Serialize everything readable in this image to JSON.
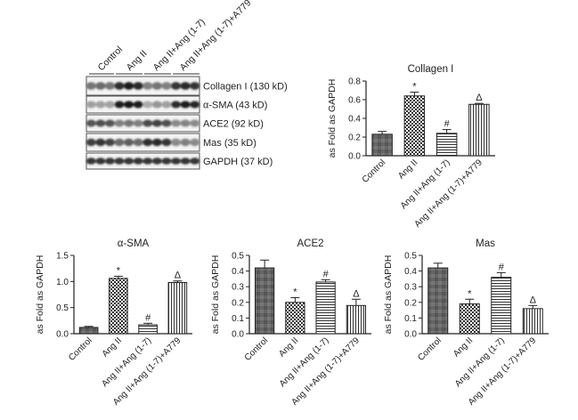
{
  "blot": {
    "groups": [
      "Control",
      "Ang II",
      "Ang II+Ang (1-7)",
      "Ang II+Ang (1-7)+A779"
    ],
    "proteins": [
      "Collagen I (130 kD)",
      "α-SMA (43 kD)",
      "ACE2 (92 kD)",
      "Mas (35 kD)",
      "GAPDH (37 kD)"
    ],
    "intensities": [
      [
        0.55,
        0.6,
        0.55,
        0.88,
        0.95,
        0.9,
        0.5,
        0.55,
        0.5,
        0.85,
        0.9,
        0.85
      ],
      [
        0.35,
        0.35,
        0.35,
        0.95,
        0.98,
        0.95,
        0.3,
        0.4,
        0.35,
        0.9,
        0.95,
        0.92
      ],
      [
        0.7,
        0.72,
        0.7,
        0.5,
        0.55,
        0.5,
        0.75,
        0.78,
        0.72,
        0.45,
        0.48,
        0.45
      ],
      [
        0.8,
        0.85,
        0.78,
        0.6,
        0.65,
        0.6,
        0.88,
        0.9,
        0.85,
        0.45,
        0.5,
        0.45
      ],
      [
        0.85,
        0.85,
        0.85,
        0.85,
        0.85,
        0.85,
        0.85,
        0.85,
        0.85,
        0.85,
        0.85,
        0.85
      ]
    ]
  },
  "chart_data": [
    {
      "type": "bar",
      "title": "Collagen I",
      "ylabel": "as Fold as GAPDH",
      "categories": [
        "Control",
        "Ang II",
        "Ang II+Ang (1-7)",
        "Ang II+Ang (1-7)+A779"
      ],
      "values": [
        0.23,
        0.64,
        0.24,
        0.55
      ],
      "errors": [
        0.03,
        0.04,
        0.04,
        0.01
      ],
      "markers": [
        "",
        "*",
        "#",
        "Δ"
      ],
      "ylim": [
        0,
        0.8
      ],
      "yticks": [
        0.0,
        0.2,
        0.4,
        0.6,
        0.8
      ],
      "ytick_labels": [
        "0.0",
        "0.2",
        "0.4",
        "0.6",
        "0.8"
      ]
    },
    {
      "type": "bar",
      "title": "α-SMA",
      "ylabel": "as Fold as GAPDH",
      "categories": [
        "Control",
        "Ang II",
        "Ang II+Ang (1-7)",
        "Ang II+Ang (1-7)+A779"
      ],
      "values": [
        0.12,
        1.06,
        0.17,
        0.98
      ],
      "errors": [
        0.02,
        0.04,
        0.03,
        0.03
      ],
      "markers": [
        "",
        "*",
        "#",
        "Δ"
      ],
      "ylim": [
        0,
        1.5
      ],
      "yticks": [
        0.0,
        0.5,
        1.0,
        1.5
      ],
      "ytick_labels": [
        "0.0",
        "0.5",
        "1.0",
        "1.5"
      ]
    },
    {
      "type": "bar",
      "title": "ACE2",
      "ylabel": "as Fold as GAPDH",
      "categories": [
        "Control",
        "Ang II",
        "Ang II+Ang (1-7)",
        "Ang II+Ang (1-7)+A779"
      ],
      "values": [
        0.42,
        0.2,
        0.33,
        0.18
      ],
      "errors": [
        0.05,
        0.03,
        0.015,
        0.04
      ],
      "markers": [
        "",
        "*",
        "#",
        "Δ"
      ],
      "ylim": [
        0,
        0.5
      ],
      "yticks": [
        0.0,
        0.1,
        0.2,
        0.3,
        0.4,
        0.5
      ],
      "ytick_labels": [
        "0.0",
        "0.1",
        "0.2",
        "0.3",
        "0.4",
        "0.5"
      ]
    },
    {
      "type": "bar",
      "title": "Mas",
      "ylabel": "as Fold as GAPDH",
      "categories": [
        "Control",
        "Ang II",
        "Ang II+Ang (1-7)",
        "Ang II+Ang (1-7)+A779"
      ],
      "values": [
        0.42,
        0.19,
        0.36,
        0.16
      ],
      "errors": [
        0.03,
        0.03,
        0.03,
        0.02
      ],
      "markers": [
        "",
        "*",
        "#",
        "Δ"
      ],
      "ylim": [
        0,
        0.5
      ],
      "yticks": [
        0.0,
        0.1,
        0.2,
        0.3,
        0.4,
        0.5
      ],
      "ytick_labels": [
        "0.0",
        "0.1",
        "0.2",
        "0.3",
        "0.4",
        "0.5"
      ]
    }
  ]
}
